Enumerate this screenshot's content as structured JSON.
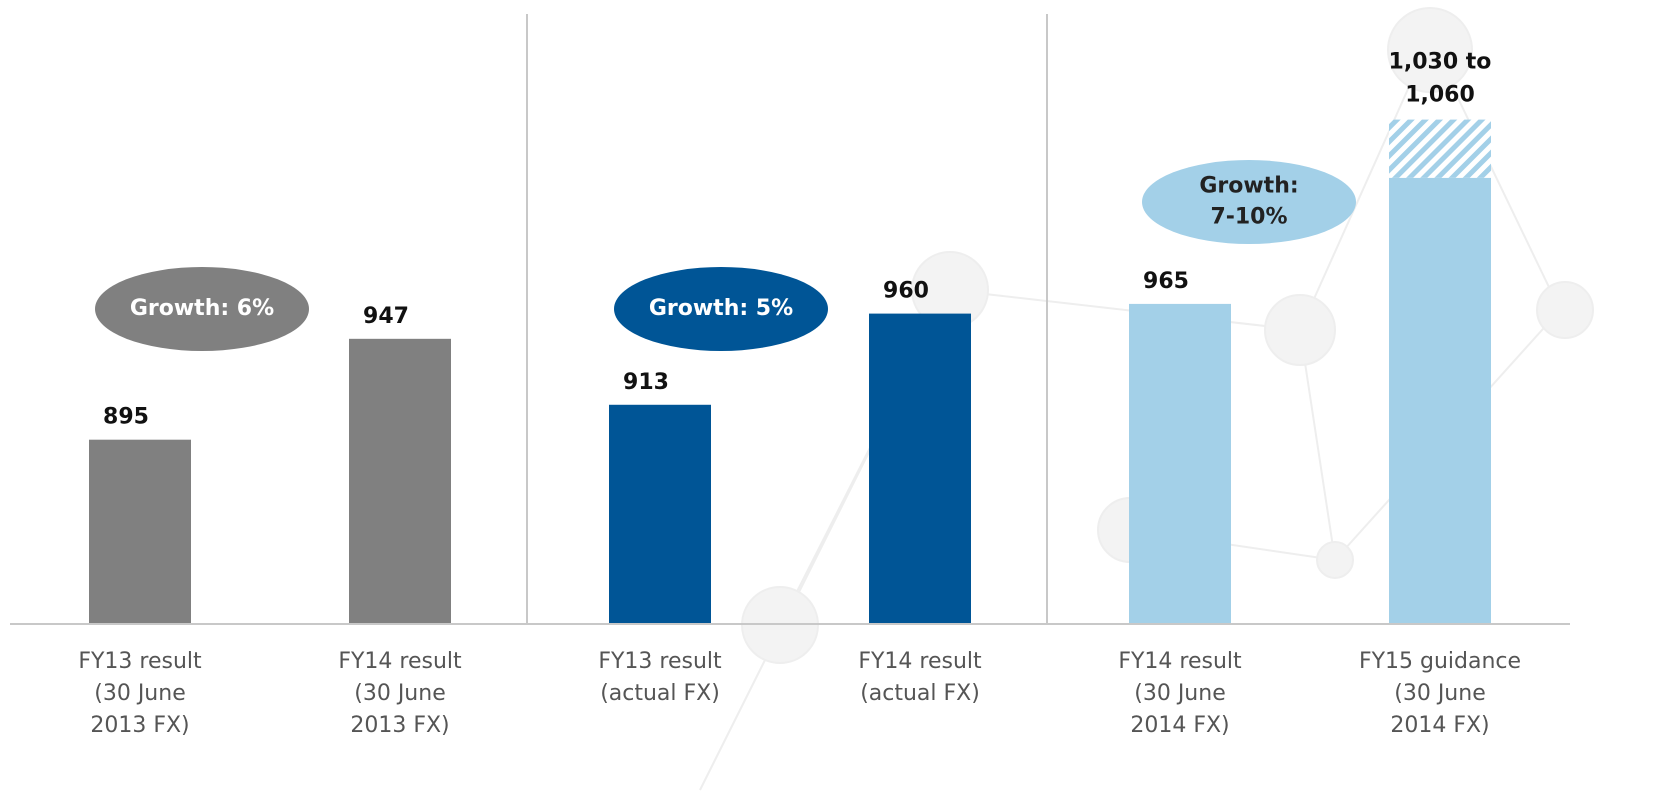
{
  "chart_data": {
    "type": "bar",
    "categories": [
      [
        "FY13 result",
        "(30 June",
        "2013 FX)"
      ],
      [
        "FY14 result",
        "(30 June",
        "2013 FX)"
      ],
      [
        "FY13 result",
        "(actual FX)"
      ],
      [
        "FY14 result",
        "(actual FX)"
      ],
      [
        "FY14 result",
        "(30 June",
        "2014 FX)"
      ],
      [
        "FY15 guidance",
        "(30 June",
        "2014 FX)"
      ]
    ],
    "values": [
      895,
      947,
      913,
      960,
      965,
      1030
    ],
    "colors": [
      "#808080",
      "#808080",
      "#005596",
      "#005596",
      "#a3d0e8",
      "#a3d0e8"
    ],
    "range_high": 1060,
    "range_label": [
      "1,030 to",
      "1,060"
    ],
    "ylim": [
      800,
      1100
    ],
    "annotations": [
      {
        "lines": [
          "Growth: 6%"
        ],
        "color": "#808080",
        "text_color": "#ffffff"
      },
      {
        "lines": [
          "Growth: 5%"
        ],
        "color": "#005596",
        "text_color": "#ffffff"
      },
      {
        "lines": [
          "Growth:",
          "7-10%"
        ],
        "color": "#a3d0e8",
        "text_color": "#222222"
      }
    ]
  }
}
